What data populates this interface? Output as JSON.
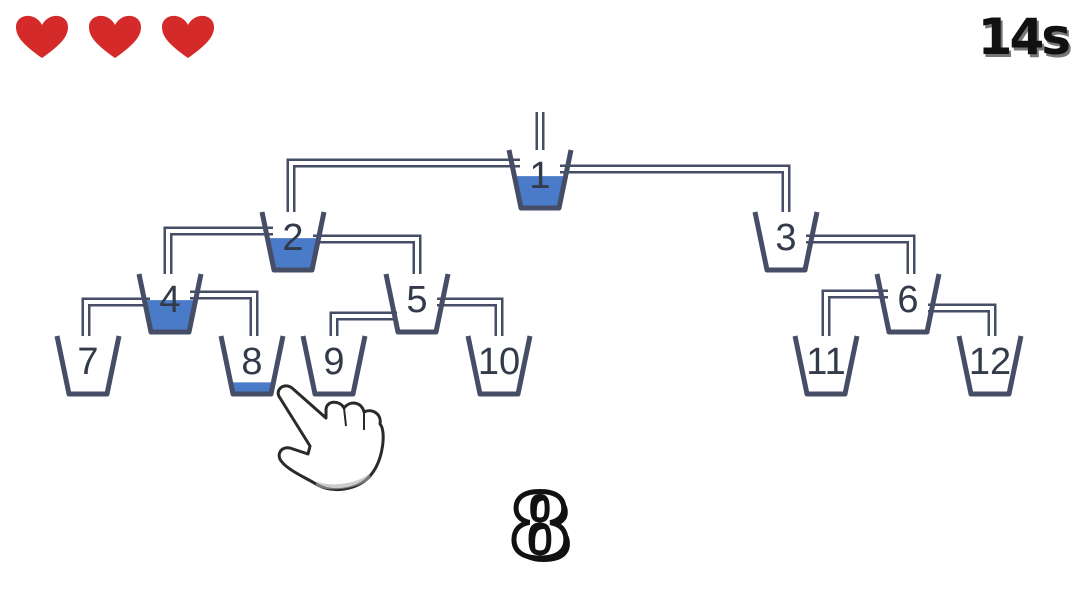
{
  "lives": {
    "count": 3,
    "icon": "heart-icon",
    "color": "#d42a2a"
  },
  "timer": {
    "label": "14s"
  },
  "target": {
    "number": "8"
  },
  "pointer": {
    "icon": "pointing-hand-icon",
    "target_cup": "8"
  },
  "colors": {
    "pipe": "#464d66",
    "water": "#4a7bc8",
    "cup_outline": "#464d66"
  },
  "cups": [
    {
      "id": "1",
      "label": "1",
      "water": 0.55
    },
    {
      "id": "2",
      "label": "2",
      "water": 0.55
    },
    {
      "id": "3",
      "label": "3",
      "water": 0
    },
    {
      "id": "4",
      "label": "4",
      "water": 0.55
    },
    {
      "id": "5",
      "label": "5",
      "water": 0
    },
    {
      "id": "6",
      "label": "6",
      "water": 0
    },
    {
      "id": "7",
      "label": "7",
      "water": 0
    },
    {
      "id": "8",
      "label": "8",
      "water": 0.2
    },
    {
      "id": "9",
      "label": "9",
      "water": 0
    },
    {
      "id": "10",
      "label": "10",
      "water": 0
    },
    {
      "id": "11",
      "label": "11",
      "water": 0
    },
    {
      "id": "12",
      "label": "12",
      "water": 0
    }
  ]
}
